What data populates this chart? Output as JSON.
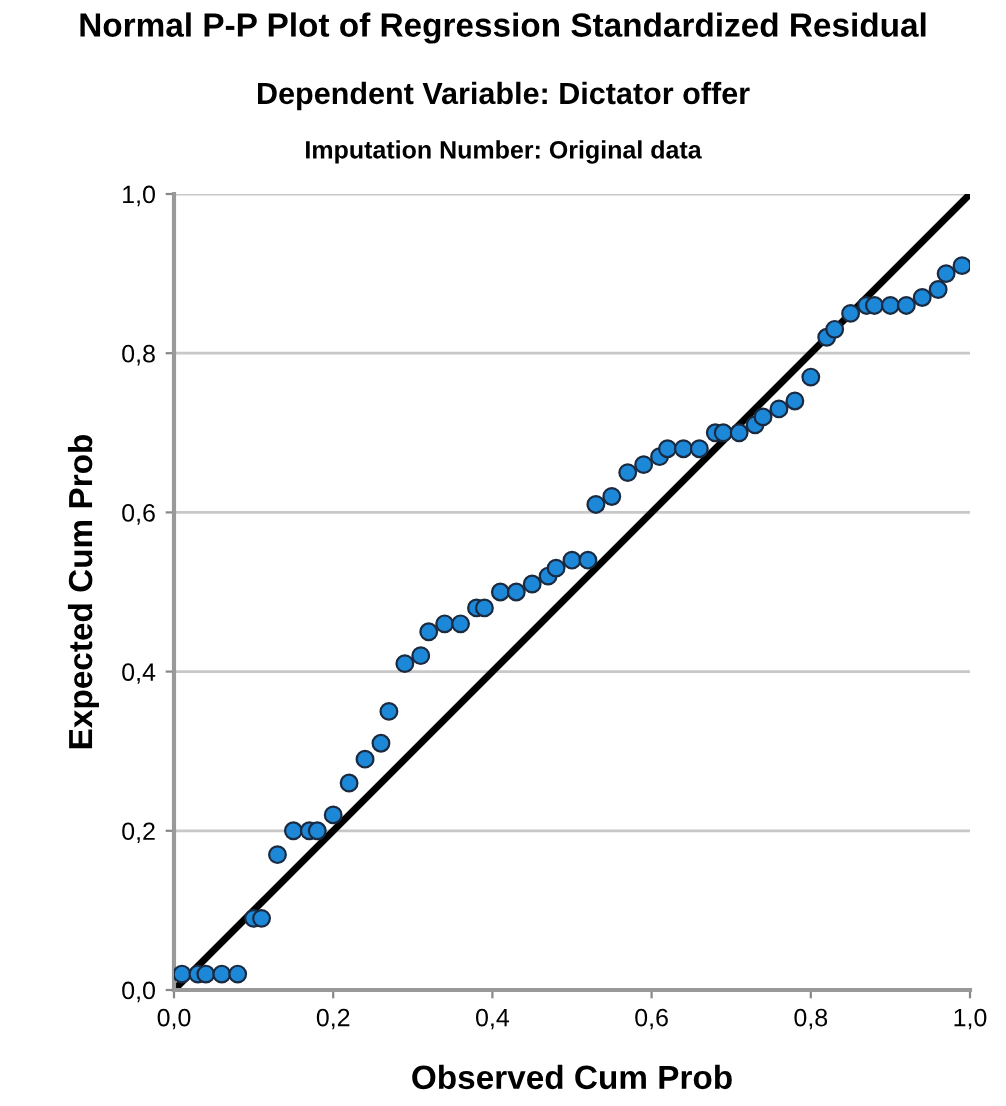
{
  "chart_data": {
    "type": "scatter",
    "title": "Normal P-P Plot of Regression Standardized Residual",
    "subtitle": "Dependent Variable: Dictator offer",
    "annotations": [
      "Imputation Number: Original data"
    ],
    "xlabel": "Observed Cum Prob",
    "ylabel": "Expected Cum Prob",
    "series": [
      {
        "marker": "circle",
        "color": "#1e88d8",
        "x": [
          0.01,
          0.03,
          0.04,
          0.06,
          0.08,
          0.1,
          0.11,
          0.13,
          0.15,
          0.17,
          0.18,
          0.2,
          0.22,
          0.24,
          0.26,
          0.27,
          0.29,
          0.31,
          0.32,
          0.34,
          0.36,
          0.38,
          0.39,
          0.41,
          0.43,
          0.45,
          0.47,
          0.48,
          0.5,
          0.52,
          0.53,
          0.55,
          0.57,
          0.59,
          0.61,
          0.62,
          0.64,
          0.66,
          0.68,
          0.69,
          0.71,
          0.73,
          0.74,
          0.76,
          0.78,
          0.8,
          0.82,
          0.83,
          0.85,
          0.87,
          0.88,
          0.9,
          0.92,
          0.94,
          0.96,
          0.97,
          0.99
        ],
        "values": [
          0.02,
          0.02,
          0.02,
          0.02,
          0.02,
          0.09,
          0.09,
          0.17,
          0.2,
          0.2,
          0.2,
          0.22,
          0.26,
          0.29,
          0.31,
          0.35,
          0.41,
          0.42,
          0.45,
          0.46,
          0.46,
          0.48,
          0.48,
          0.5,
          0.5,
          0.51,
          0.52,
          0.53,
          0.54,
          0.54,
          0.61,
          0.62,
          0.65,
          0.66,
          0.67,
          0.68,
          0.68,
          0.68,
          0.7,
          0.7,
          0.7,
          0.71,
          0.72,
          0.73,
          0.74,
          0.77,
          0.82,
          0.83,
          0.85,
          0.86,
          0.86,
          0.86,
          0.86,
          0.87,
          0.88,
          0.9,
          0.91
        ]
      },
      {
        "type": "line",
        "marker": "none",
        "color": "#000000",
        "x": [
          0.0,
          1.0
        ],
        "values": [
          0.0,
          1.0
        ]
      }
    ],
    "xlim": [
      0.0,
      1.0
    ],
    "ylim": [
      0.0,
      1.0
    ],
    "xticks": [
      {
        "value": 0.0,
        "label": "0,0"
      },
      {
        "value": 0.2,
        "label": "0,2"
      },
      {
        "value": 0.4,
        "label": "0,4"
      },
      {
        "value": 0.6,
        "label": "0,6"
      },
      {
        "value": 0.8,
        "label": "0,8"
      },
      {
        "value": 1.0,
        "label": "1,0"
      }
    ],
    "yticks": [
      {
        "value": 0.0,
        "label": "0,0"
      },
      {
        "value": 0.2,
        "label": "0,2"
      },
      {
        "value": 0.4,
        "label": "0,4"
      },
      {
        "value": 0.6,
        "label": "0,6"
      },
      {
        "value": 0.8,
        "label": "0,8"
      },
      {
        "value": 1.0,
        "label": "1,0"
      }
    ],
    "grid": "y"
  }
}
